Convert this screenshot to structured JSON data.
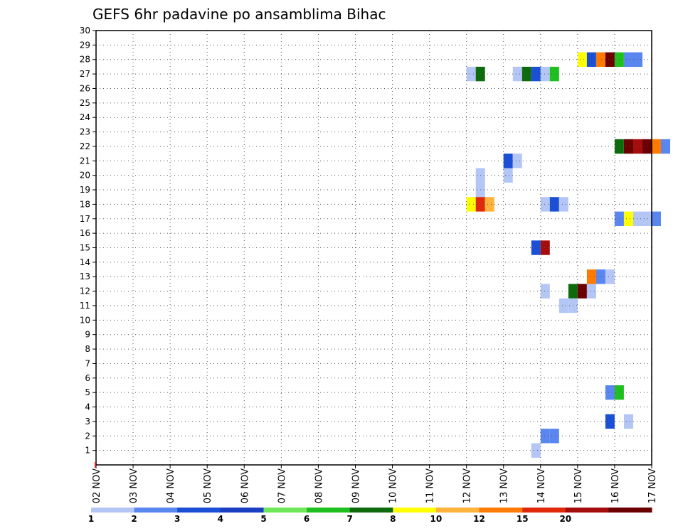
{
  "chart_data": {
    "type": "heatmap",
    "title": "GEFS 6hr padavine po ansamblima Bihac",
    "xlabel": "",
    "ylabel": "",
    "y_ticks": [
      1,
      2,
      3,
      4,
      5,
      6,
      7,
      8,
      9,
      10,
      11,
      12,
      13,
      14,
      15,
      16,
      17,
      18,
      19,
      20,
      21,
      22,
      23,
      24,
      25,
      26,
      27,
      28,
      29,
      30
    ],
    "ylim": [
      0,
      30
    ],
    "x_ticks": [
      "02 NOV",
      "03 NOV",
      "04 NOV",
      "05 NOV",
      "06 NOV",
      "07 NOV",
      "08 NOV",
      "09 NOV",
      "10 NOV",
      "11 NOV",
      "12 NOV",
      "13 NOV",
      "14 NOV",
      "15 NOV",
      "16 NOV",
      "17 NOV"
    ],
    "x_unit": "days from 02 NOV, 6-hour steps",
    "xlim": [
      0,
      15
    ],
    "grid": true,
    "colorbar": {
      "labels": [
        "1",
        "2",
        "3",
        "4",
        "5",
        "6",
        "7",
        "8",
        "10",
        "12",
        "15",
        "20"
      ],
      "colors": [
        "#b3c6f5",
        "#5a86ef",
        "#1a4fd6",
        "#1a3fc0",
        "#6ee85a",
        "#1fbf1f",
        "#0d6b0d",
        "#ffff00",
        "#ffb23c",
        "#ff7a00",
        "#e0280a",
        "#a50d0d",
        "#6b0000"
      ]
    },
    "cells": [
      {
        "member": 27,
        "x": 10.0,
        "color": "#b3c6f5"
      },
      {
        "member": 27,
        "x": 10.25,
        "color": "#0d6b0d"
      },
      {
        "member": 27,
        "x": 11.25,
        "color": "#b3c6f5"
      },
      {
        "member": 27,
        "x": 11.5,
        "color": "#0d6b0d"
      },
      {
        "member": 27,
        "x": 11.75,
        "color": "#1a4fd6"
      },
      {
        "member": 27,
        "x": 12.0,
        "color": "#b3c6f5"
      },
      {
        "member": 27,
        "x": 12.25,
        "color": "#1fbf1f"
      },
      {
        "member": 28,
        "x": 13.0,
        "color": "#ffff00"
      },
      {
        "member": 28,
        "x": 13.25,
        "color": "#1a4fd6"
      },
      {
        "member": 28,
        "x": 13.5,
        "color": "#ff7a00"
      },
      {
        "member": 28,
        "x": 13.75,
        "color": "#6b0000"
      },
      {
        "member": 28,
        "x": 14.0,
        "color": "#1fbf1f"
      },
      {
        "member": 28,
        "x": 14.25,
        "color": "#5a86ef"
      },
      {
        "member": 28,
        "x": 14.5,
        "color": "#5a86ef"
      },
      {
        "member": 22,
        "x": 14.0,
        "color": "#0d6b0d"
      },
      {
        "member": 22,
        "x": 14.25,
        "color": "#6b0000"
      },
      {
        "member": 22,
        "x": 14.5,
        "color": "#a50d0d"
      },
      {
        "member": 22,
        "x": 14.75,
        "color": "#6b0000"
      },
      {
        "member": 22,
        "x": 15.0,
        "color": "#ff7a00"
      },
      {
        "member": 22,
        "x": 15.25,
        "color": "#5a86ef"
      },
      {
        "member": 21,
        "x": 11.0,
        "color": "#1a4fd6"
      },
      {
        "member": 21,
        "x": 11.25,
        "color": "#b3c6f5"
      },
      {
        "member": 20,
        "x": 10.25,
        "color": "#b3c6f5"
      },
      {
        "member": 20,
        "x": 11.0,
        "color": "#b3c6f5"
      },
      {
        "member": 19,
        "x": 10.25,
        "color": "#b3c6f5"
      },
      {
        "member": 18,
        "x": 10.0,
        "color": "#ffff00"
      },
      {
        "member": 18,
        "x": 10.25,
        "color": "#e0280a"
      },
      {
        "member": 18,
        "x": 10.5,
        "color": "#ffb23c"
      },
      {
        "member": 18,
        "x": 12.0,
        "color": "#b3c6f5"
      },
      {
        "member": 18,
        "x": 12.25,
        "color": "#1a4fd6"
      },
      {
        "member": 18,
        "x": 12.5,
        "color": "#b3c6f5"
      },
      {
        "member": 17,
        "x": 14.0,
        "color": "#5a86ef"
      },
      {
        "member": 17,
        "x": 14.25,
        "color": "#ffff00"
      },
      {
        "member": 17,
        "x": 14.5,
        "color": "#b3c6f5"
      },
      {
        "member": 17,
        "x": 14.75,
        "color": "#b3c6f5"
      },
      {
        "member": 17,
        "x": 15.0,
        "color": "#5a86ef"
      },
      {
        "member": 15,
        "x": 11.75,
        "color": "#1a4fd6"
      },
      {
        "member": 15,
        "x": 12.0,
        "color": "#a50d0d"
      },
      {
        "member": 13,
        "x": 13.25,
        "color": "#ff7a00"
      },
      {
        "member": 13,
        "x": 13.5,
        "color": "#5a86ef"
      },
      {
        "member": 13,
        "x": 13.75,
        "color": "#b3c6f5"
      },
      {
        "member": 12,
        "x": 12.0,
        "color": "#b3c6f5"
      },
      {
        "member": 12,
        "x": 12.75,
        "color": "#0d6b0d"
      },
      {
        "member": 12,
        "x": 13.0,
        "color": "#6b0000"
      },
      {
        "member": 12,
        "x": 13.25,
        "color": "#b3c6f5"
      },
      {
        "member": 11,
        "x": 12.5,
        "color": "#b3c6f5"
      },
      {
        "member": 11,
        "x": 12.75,
        "color": "#b3c6f5"
      },
      {
        "member": 5,
        "x": 13.75,
        "color": "#5a86ef"
      },
      {
        "member": 5,
        "x": 14.0,
        "color": "#1fbf1f"
      },
      {
        "member": 3,
        "x": 13.75,
        "color": "#1a4fd6"
      },
      {
        "member": 3,
        "x": 14.25,
        "color": "#b3c6f5"
      },
      {
        "member": 2,
        "x": 12.0,
        "color": "#5a86ef"
      },
      {
        "member": 2,
        "x": 12.25,
        "color": "#5a86ef"
      },
      {
        "member": 1,
        "x": 11.75,
        "color": "#b3c6f5"
      }
    ]
  }
}
